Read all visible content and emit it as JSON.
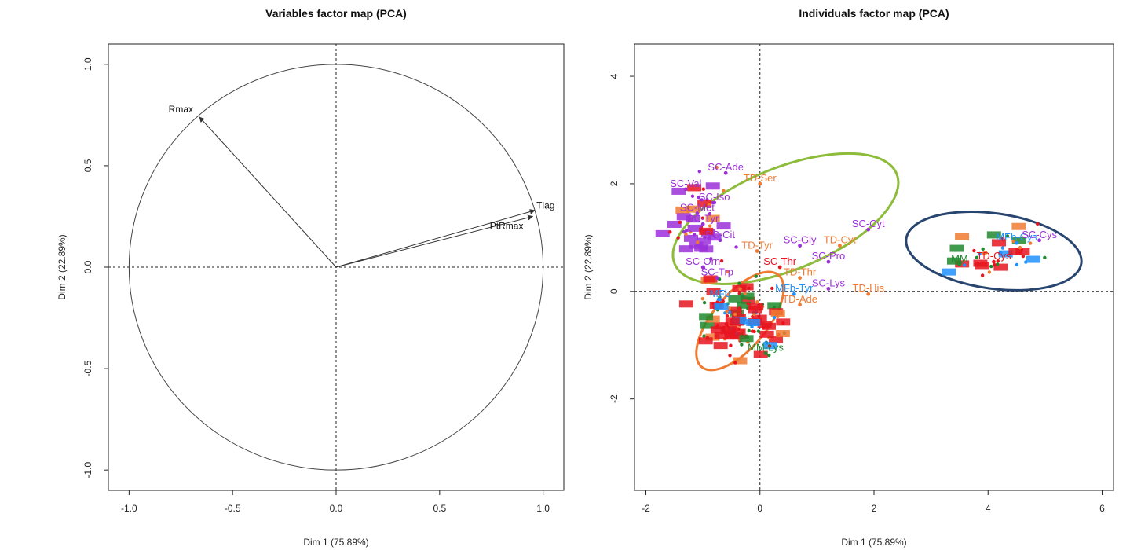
{
  "chart_data": [
    {
      "type": "scatter",
      "title": "Variables factor map (PCA)",
      "xlabel": "Dim 1 (75.89%)",
      "ylabel": "Dim 2 (22.89%)",
      "xlim": [
        -1.1,
        1.1
      ],
      "ylim": [
        -1.1,
        1.1
      ],
      "xticks": [
        "-1.0",
        "-0.5",
        "0.0",
        "0.5",
        "1.0"
      ],
      "yticks": [
        "-1.0",
        "-0.5",
        "0.0",
        "0.5",
        "1.0"
      ],
      "grid": false,
      "correlation_circle": true,
      "variables": [
        {
          "name": "Rmax",
          "x": -0.66,
          "y": 0.74
        },
        {
          "name": "Tlag",
          "x": 0.96,
          "y": 0.28
        },
        {
          "name": "PtRmax",
          "x": 0.95,
          "y": 0.25
        }
      ]
    },
    {
      "type": "scatter",
      "title": "Individuals factor map (PCA)",
      "xlabel": "Dim 1 (75.89%)",
      "ylabel": "Dim 2 (22.89%)",
      "xlim": [
        -2.2,
        6.2
      ],
      "ylim": [
        -3.7,
        4.6
      ],
      "xticks": [
        "-2",
        "0",
        "2",
        "4",
        "6"
      ],
      "yticks": [
        "-2",
        "0",
        "2",
        "4"
      ],
      "grid": false,
      "colors": {
        "SC": "#9b30d9",
        "TD": "#f07a30",
        "MF": "#1e90ff",
        "MM": "#1f8a2e",
        "RED": "#e8141e"
      },
      "ellipses": [
        {
          "cx": 0.45,
          "cy": 1.35,
          "rx": 2.1,
          "ry": 0.95,
          "angle_deg": -22,
          "color": "#8dbb3a"
        },
        {
          "cx": -0.35,
          "cy": -0.55,
          "rx": 1.05,
          "ry": 0.5,
          "angle_deg": -50,
          "color": "#f07a30"
        },
        {
          "cx": 4.1,
          "cy": 0.75,
          "rx": 1.55,
          "ry": 0.7,
          "angle_deg": 8,
          "color": "#27456e"
        }
      ],
      "points": [
        {
          "label": "SC-Ade",
          "x": -0.6,
          "y": 2.2,
          "group": "SC"
        },
        {
          "label": "TD-Ser",
          "x": 0.0,
          "y": 2.0,
          "group": "TD"
        },
        {
          "label": "SC-Val",
          "x": -1.3,
          "y": 1.9,
          "group": "SC"
        },
        {
          "label": "SC-Iso",
          "x": -0.8,
          "y": 1.65,
          "group": "SC"
        },
        {
          "label": "SC-Met",
          "x": -1.1,
          "y": 1.45,
          "group": "SC"
        },
        {
          "label": "SC-Tyr",
          "x": -1.0,
          "y": 1.25,
          "group": "SC"
        },
        {
          "label": "SC-Cit",
          "x": -0.7,
          "y": 0.95,
          "group": "SC"
        },
        {
          "label": "TD-Tyr",
          "x": -0.05,
          "y": 0.75,
          "group": "TD"
        },
        {
          "label": "SC-Orn",
          "x": -1.0,
          "y": 0.45,
          "group": "SC"
        },
        {
          "label": "SC-Trp",
          "x": -0.75,
          "y": 0.25,
          "group": "SC"
        },
        {
          "label": "SC-Gly",
          "x": 0.7,
          "y": 0.85,
          "group": "SC"
        },
        {
          "label": "TD-Cyt",
          "x": 1.4,
          "y": 0.85,
          "group": "TD"
        },
        {
          "label": "SC-Cyt",
          "x": 1.9,
          "y": 1.15,
          "group": "SC"
        },
        {
          "label": "SC-Pro",
          "x": 1.2,
          "y": 0.55,
          "group": "SC"
        },
        {
          "label": "SC-Thr",
          "x": 0.35,
          "y": 0.45,
          "group": "RED"
        },
        {
          "label": "TD-Thr",
          "x": 0.7,
          "y": 0.25,
          "group": "TD"
        },
        {
          "label": "SC-Lys",
          "x": 1.2,
          "y": 0.05,
          "group": "SC"
        },
        {
          "label": "TD-His",
          "x": 1.9,
          "y": -0.05,
          "group": "TD"
        },
        {
          "label": "MFb-Tyr",
          "x": 0.6,
          "y": -0.05,
          "group": "MF"
        },
        {
          "label": "TD-Ade",
          "x": 0.7,
          "y": -0.25,
          "group": "TD"
        },
        {
          "label": "MFb",
          "x": -0.7,
          "y": -0.15,
          "group": "MF"
        },
        {
          "label": "MM-Lys",
          "x": 0.1,
          "y": -1.15,
          "group": "MM"
        },
        {
          "label": "MFb-Cys",
          "x": 4.5,
          "y": 0.9,
          "group": "MF"
        },
        {
          "label": "SC-Cys",
          "x": 4.9,
          "y": 0.95,
          "group": "SC"
        },
        {
          "label": "MM",
          "x": 3.5,
          "y": 0.5,
          "group": "MM"
        },
        {
          "label": "TD-Cys",
          "x": 4.1,
          "y": 0.55,
          "group": "RED"
        }
      ]
    }
  ]
}
